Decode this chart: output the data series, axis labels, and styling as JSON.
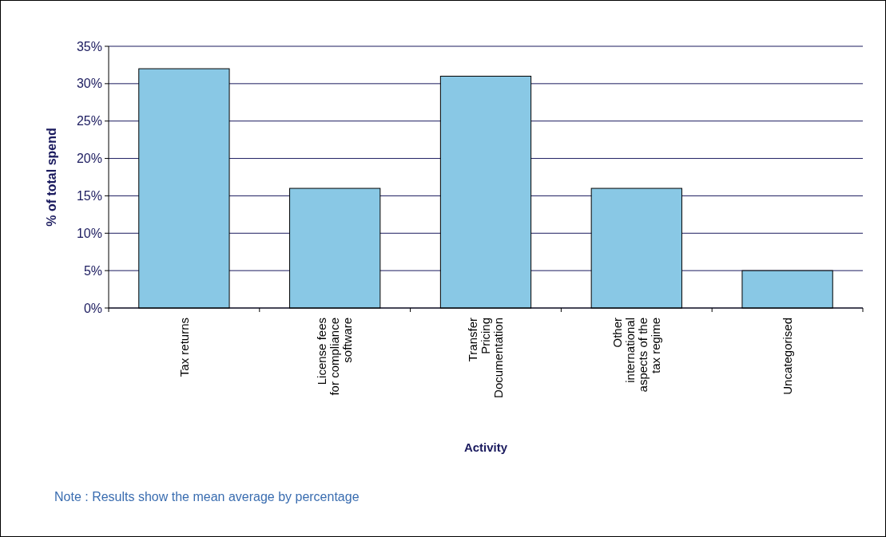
{
  "chart_data": {
    "type": "bar",
    "xlabel": "Activity",
    "ylabel": "% of total spend",
    "categories": [
      "Tax returns",
      "License fees for compliance software",
      "Transfer Pricing Documentation",
      "Other international aspects of the tax regime",
      "Uncategorised"
    ],
    "values": [
      32,
      16,
      31,
      16,
      5
    ],
    "color": "#89c8e5",
    "ylim": [
      0,
      35
    ],
    "yticks": [
      {
        "value": 0,
        "label": "0%"
      },
      {
        "value": 5,
        "label": "5%"
      },
      {
        "value": 10,
        "label": "10%"
      },
      {
        "value": 15,
        "label": "15%"
      },
      {
        "value": 20,
        "label": "20%"
      },
      {
        "value": 25,
        "label": "25%"
      },
      {
        "value": 30,
        "label": "30%"
      },
      {
        "value": 35,
        "label": "35%"
      }
    ],
    "grid": "y",
    "annotations": [
      "Note : Results show the mean average by percentage"
    ]
  }
}
